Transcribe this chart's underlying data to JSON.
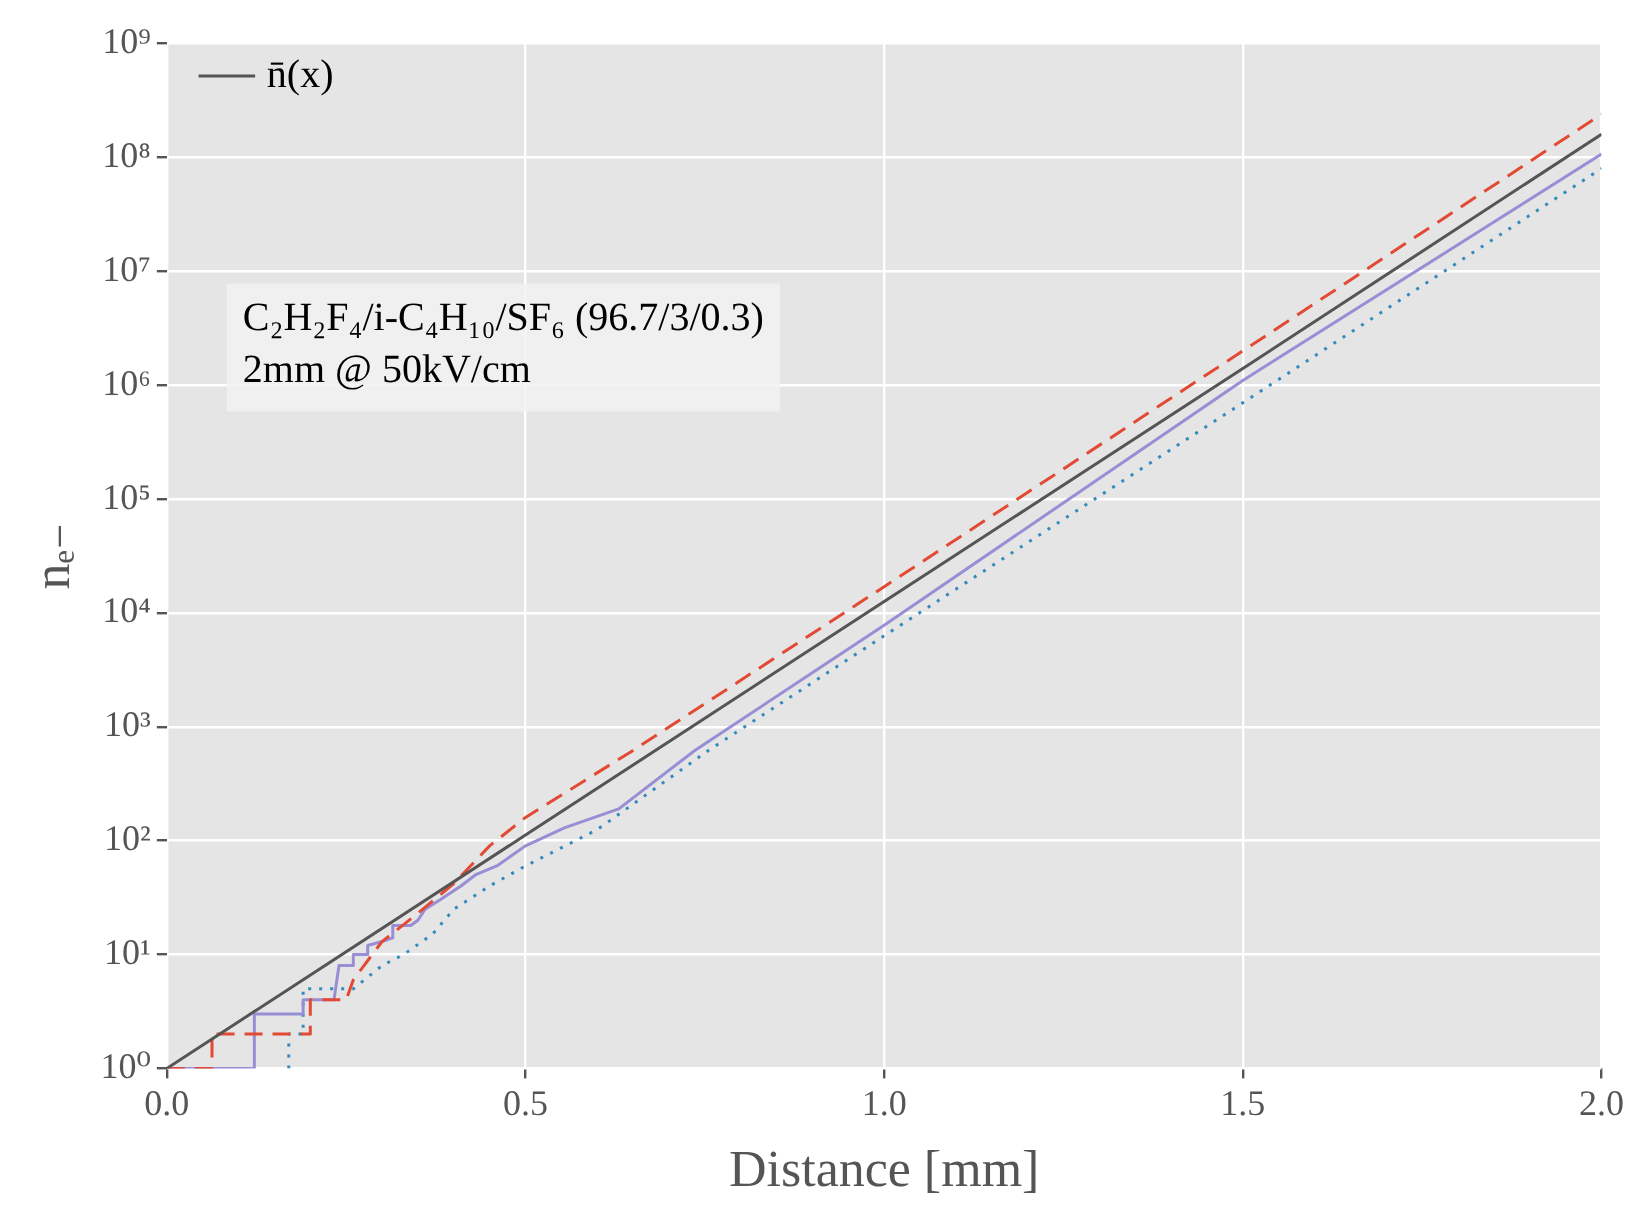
{
  "chart_data": {
    "type": "line",
    "xlabel": "Distance [mm]",
    "ylabel": "nₑ₋",
    "xlim": [
      0,
      2.0
    ],
    "xticks": [
      {
        "value": 0,
        "label": "0.0"
      },
      0.5,
      {
        "value": 1,
        "label": "1.0"
      },
      1.5,
      {
        "value": 2,
        "label": "2.0"
      }
    ],
    "ylim": [
      1,
      1000000000
    ],
    "yticks": [
      {
        "value": 1,
        "label": "10⁰"
      },
      {
        "value": 10,
        "label": "10¹"
      },
      {
        "value": 100,
        "label": "10²"
      },
      {
        "value": 1000,
        "label": "10³"
      },
      {
        "value": 10000,
        "label": "10⁴"
      },
      {
        "value": 100000,
        "label": "10⁵"
      },
      {
        "value": 1000000,
        "label": "10⁶"
      },
      {
        "value": 10000000,
        "label": "10⁷"
      },
      {
        "value": 100000000,
        "label": "10⁸"
      },
      {
        "value": 1000000000,
        "label": "10⁹"
      }
    ],
    "log": "y",
    "grid": true,
    "legend": "top left",
    "marker": "none",
    "annotations": [
      "C₂H₂F₄/i-C₄H₁₀/SF₆ (96.7/3/0.3)",
      "2mm @ 50kV/cm"
    ],
    "series": [
      {
        "name": "n̄(x)",
        "color": "#555555",
        "line_style": "solid",
        "x": [
          0,
          0.5,
          1.0,
          1.5,
          2.0
        ],
        "values": [
          1,
          112,
          12600,
          1400000,
          160000000
        ]
      },
      {
        "color": "#e24a33",
        "line_style": "dashed",
        "x": [
          0,
          0.063,
          0.063,
          0.2,
          0.2,
          0.25,
          0.26,
          0.3,
          0.35,
          0.4,
          0.45,
          0.5,
          0.65,
          1.0,
          1.5,
          2.0
        ],
        "values": [
          1,
          1,
          2,
          2,
          4,
          4,
          6,
          13,
          23,
          42,
          90,
          160,
          620,
          17000,
          2000000,
          240000000
        ]
      },
      {
        "color": "#988ed5",
        "line_style": "solid",
        "x": [
          0,
          0.122,
          0.122,
          0.19,
          0.19,
          0.233,
          0.24,
          0.26,
          0.26,
          0.28,
          0.28,
          0.3,
          0.315,
          0.315,
          0.34,
          0.35,
          0.36,
          0.38,
          0.41,
          0.43,
          0.46,
          0.5,
          0.555,
          0.63,
          0.736,
          1.0,
          1.5,
          2.0
        ],
        "values": [
          1,
          1,
          3,
          3,
          4,
          4,
          8,
          8,
          10,
          10,
          12,
          13,
          14,
          18,
          18,
          20,
          25,
          30,
          40,
          50,
          60,
          90,
          130,
          190,
          620,
          7800,
          1100000,
          107000000
        ]
      },
      {
        "color": "#348abd",
        "line_style": "dotted",
        "x": [
          0.17,
          0.17,
          0.19,
          0.19,
          0.26,
          0.3,
          0.33,
          0.37,
          0.4,
          0.45,
          0.5,
          0.6,
          0.755,
          1.0,
          1.5,
          2.0
        ],
        "values": [
          1,
          2,
          2,
          5,
          5,
          8,
          10,
          15,
          25,
          40,
          60,
          125,
          620,
          6300,
          700000,
          80000000
        ]
      }
    ]
  }
}
